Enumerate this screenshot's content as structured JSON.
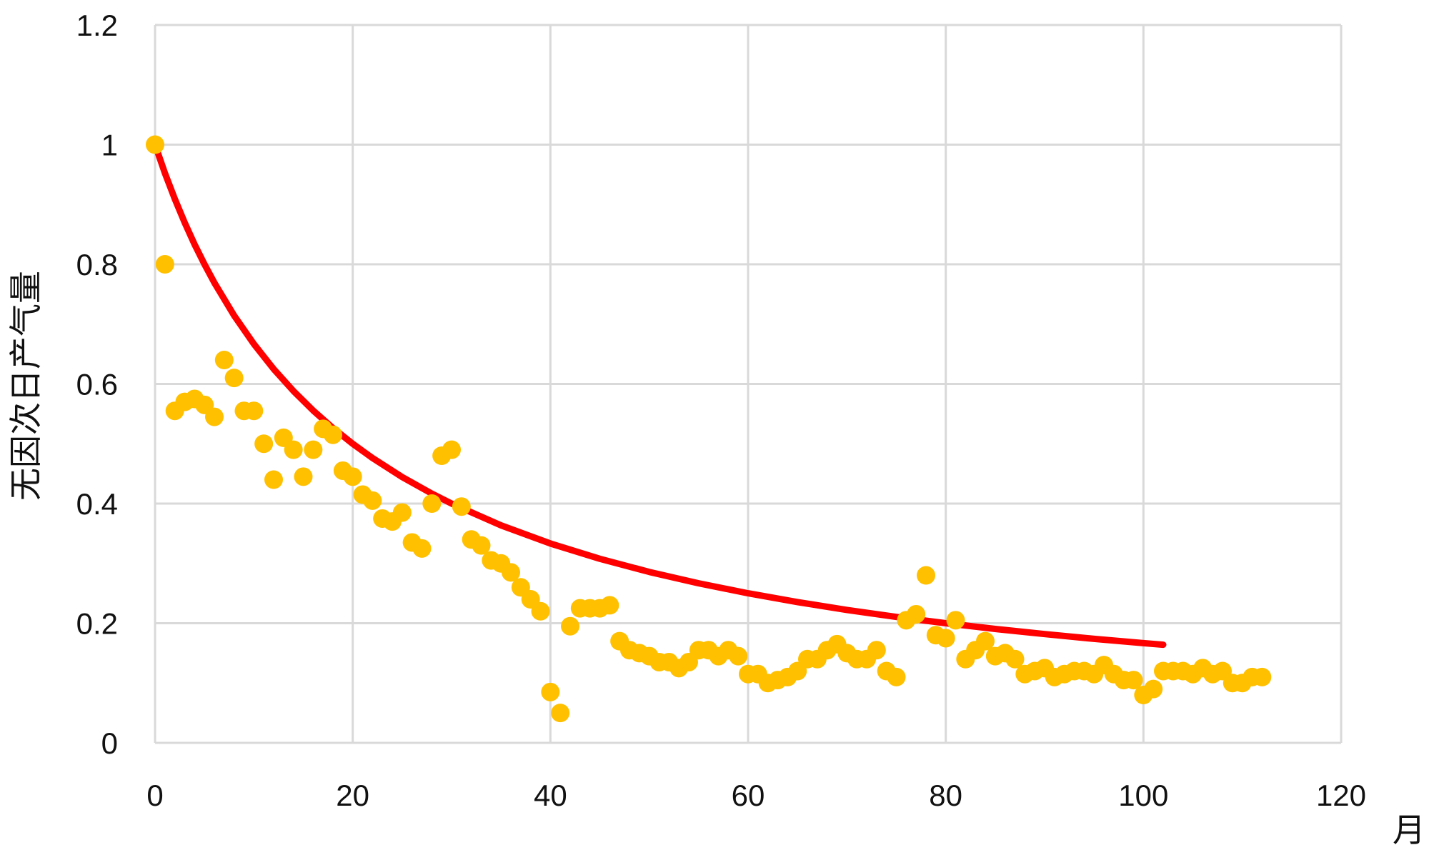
{
  "chart_data": {
    "type": "scatter",
    "title": "",
    "xlabel": "月",
    "ylabel": "无因次日产气量",
    "xlim": [
      0,
      120
    ],
    "ylim": [
      0,
      1.2
    ],
    "x_ticks": [
      "0",
      "20",
      "40",
      "60",
      "80",
      "100",
      "120"
    ],
    "y_ticks": [
      "0",
      "0.2",
      "0.4",
      "0.6",
      "0.8",
      "1",
      "1.2"
    ],
    "grid": true,
    "legend": "none",
    "colors": {
      "points": "#FFC000",
      "trend": "#FF0000",
      "grid": "#D9D9D9"
    },
    "series": [
      {
        "type": "scatter",
        "x": [
          0,
          1,
          2,
          3,
          4,
          5,
          6,
          7,
          8,
          9,
          10,
          11,
          12,
          13,
          14,
          15,
          16,
          17,
          18,
          19,
          20,
          21,
          22,
          23,
          24,
          25,
          26,
          27,
          28,
          29,
          30,
          31,
          32,
          33,
          34,
          35,
          36,
          37,
          38,
          39,
          40,
          41,
          42,
          43,
          44,
          45,
          46,
          47,
          48,
          49,
          50,
          51,
          52,
          53,
          54,
          55,
          56,
          57,
          58,
          59,
          60,
          61,
          62,
          63,
          64,
          65,
          66,
          67,
          68,
          69,
          70,
          71,
          72,
          73,
          74,
          75,
          76,
          77,
          78,
          79,
          80,
          81,
          82,
          83,
          84,
          85,
          86,
          87,
          88,
          89,
          90,
          91,
          92,
          93,
          94,
          95,
          96,
          97,
          98,
          99,
          100,
          101,
          102,
          103,
          104,
          105,
          106,
          107,
          108,
          109,
          110,
          111,
          112
        ],
        "y": [
          1.0,
          0.8,
          0.555,
          0.57,
          0.575,
          0.565,
          0.545,
          0.64,
          0.61,
          0.555,
          0.555,
          0.5,
          0.44,
          0.51,
          0.49,
          0.445,
          0.49,
          0.525,
          0.515,
          0.455,
          0.445,
          0.415,
          0.405,
          0.375,
          0.37,
          0.385,
          0.335,
          0.325,
          0.4,
          0.48,
          0.49,
          0.395,
          0.34,
          0.33,
          0.305,
          0.3,
          0.285,
          0.26,
          0.24,
          0.22,
          0.085,
          0.05,
          0.195,
          0.225,
          0.225,
          0.225,
          0.23,
          0.17,
          0.155,
          0.15,
          0.145,
          0.135,
          0.135,
          0.125,
          0.135,
          0.155,
          0.155,
          0.145,
          0.155,
          0.145,
          0.115,
          0.115,
          0.1,
          0.105,
          0.11,
          0.12,
          0.14,
          0.14,
          0.155,
          0.165,
          0.15,
          0.14,
          0.14,
          0.155,
          0.12,
          0.11,
          0.205,
          0.215,
          0.28,
          0.18,
          0.175,
          0.205,
          0.14,
          0.155,
          0.17,
          0.145,
          0.15,
          0.14,
          0.115,
          0.12,
          0.125,
          0.11,
          0.115,
          0.12,
          0.12,
          0.115,
          0.13,
          0.115,
          0.105,
          0.105,
          0.08,
          0.09,
          0.12,
          0.12,
          0.12,
          0.115,
          0.125,
          0.115,
          0.12,
          0.1,
          0.1,
          0.11,
          0.11
        ]
      },
      {
        "type": "line",
        "x": [
          0,
          1,
          2,
          3,
          4,
          5,
          6,
          8,
          10,
          12,
          14,
          16,
          18,
          20,
          22,
          25,
          28,
          30,
          35,
          40,
          45,
          50,
          55,
          60,
          65,
          70,
          75,
          80,
          85,
          90,
          95,
          100,
          102
        ],
        "y": [
          1.0,
          0.9524,
          0.9091,
          0.8696,
          0.8333,
          0.8,
          0.7692,
          0.7143,
          0.6667,
          0.625,
          0.5882,
          0.5556,
          0.5263,
          0.5,
          0.4762,
          0.4444,
          0.4167,
          0.4,
          0.3636,
          0.3333,
          0.3077,
          0.2857,
          0.2667,
          0.25,
          0.2353,
          0.2222,
          0.2105,
          0.2,
          0.1905,
          0.1818,
          0.1739,
          0.1667,
          0.164
        ]
      }
    ]
  }
}
